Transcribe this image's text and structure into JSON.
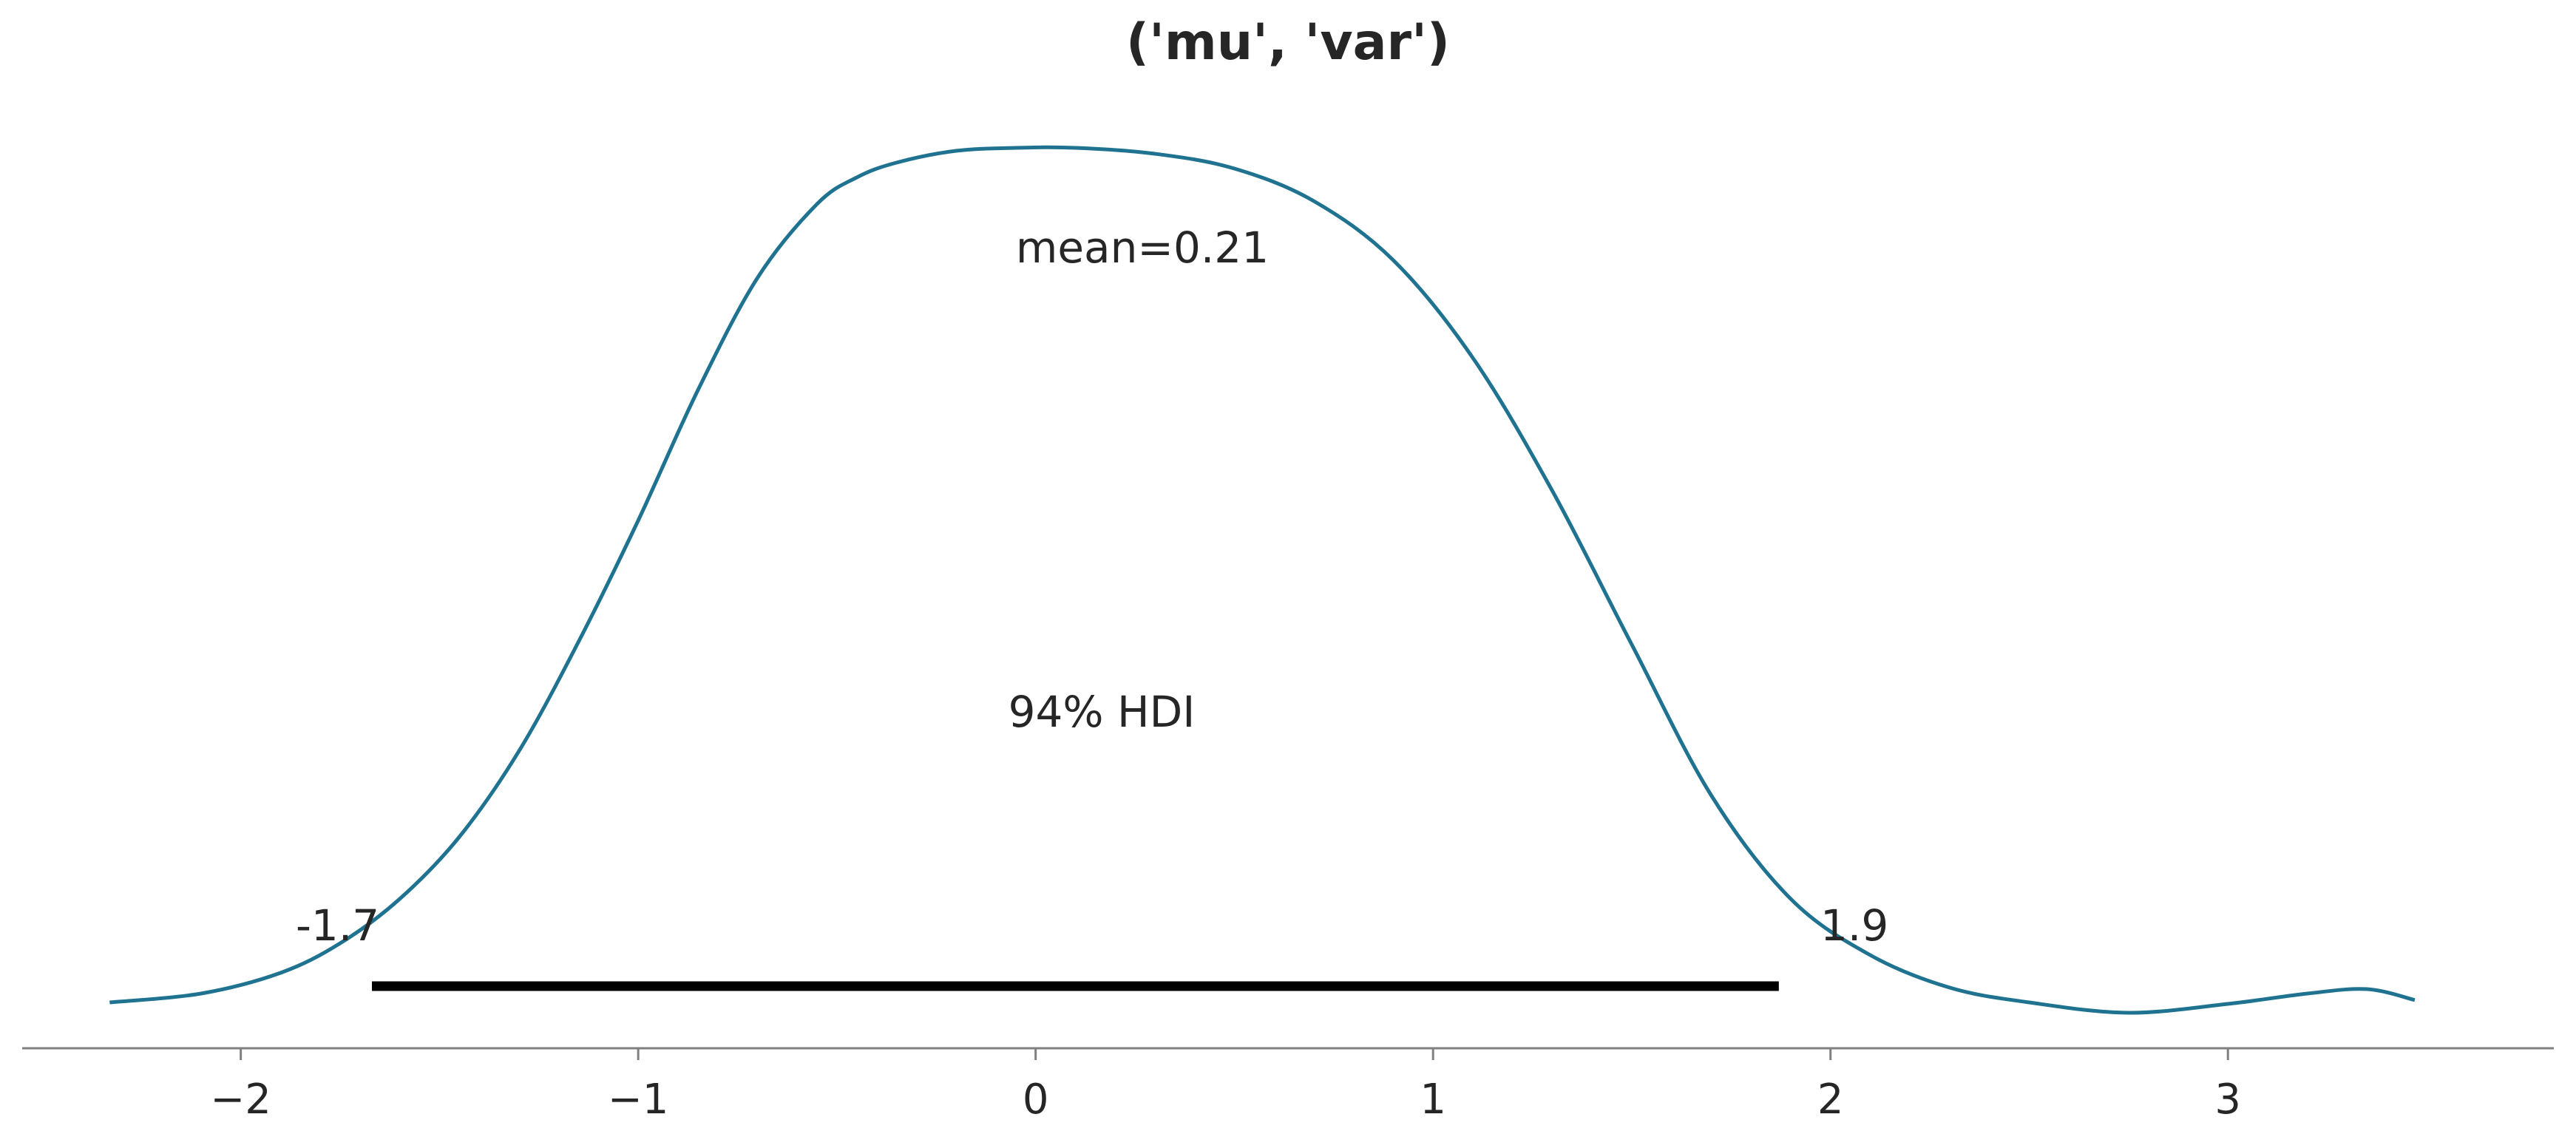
{
  "chart_data": {
    "type": "line",
    "title": "('mu', 'var')",
    "xlabel": "",
    "ylabel": "",
    "xlim": [
      -2.55,
      3.82
    ],
    "ylim": [
      -0.0155,
      0.3115
    ],
    "grid": false,
    "legend": "none",
    "x_ticks": [
      -2,
      -1,
      0,
      1,
      2,
      3
    ],
    "x_tick_labels": [
      "−2",
      "−1",
      "0",
      "1",
      "2",
      "3"
    ],
    "series": [
      {
        "color": "#1f7391",
        "x": [
          -2.33,
          -2.1,
          -1.9,
          -1.75,
          -1.6,
          -1.45,
          -1.3,
          -1.15,
          -1.0,
          -0.85,
          -0.7,
          -0.55,
          -0.45,
          -0.35,
          -0.2,
          -0.05,
          0.1,
          0.3,
          0.5,
          0.7,
          0.9,
          1.1,
          1.3,
          1.5,
          1.7,
          1.9,
          2.1,
          2.3,
          2.5,
          2.75,
          3.0,
          3.2,
          3.35,
          3.47
        ],
        "y": [
          0.0,
          0.003,
          0.01,
          0.02,
          0.035,
          0.056,
          0.085,
          0.122,
          0.163,
          0.207,
          0.245,
          0.27,
          0.279,
          0.284,
          0.288,
          0.289,
          0.289,
          0.287,
          0.282,
          0.271,
          0.251,
          0.218,
          0.173,
          0.121,
          0.07,
          0.035,
          0.016,
          0.005,
          0.0,
          -0.0035,
          -0.0005,
          0.003,
          0.0045,
          0.0008
        ]
      }
    ],
    "mean_label": "mean=0.21",
    "hdi": {
      "label": "94% HDI",
      "low": -1.67,
      "high": 1.87,
      "low_label": "-1.7",
      "high_label": "1.9",
      "color": "#000000"
    }
  }
}
